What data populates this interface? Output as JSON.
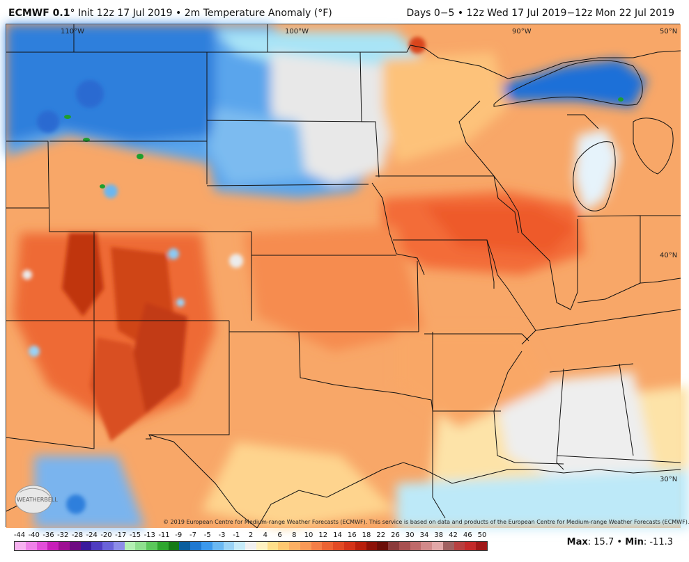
{
  "header": {
    "model": "ECMWF 0.1",
    "init_prefix": "° Init 12z 17 Jul 2019 • 2m Temperature Anomaly (°F)",
    "valid": "Days 0−5 • 12z Wed 17 Jul 2019−12z Mon 22 Jul 2019"
  },
  "map": {
    "lon_labels": [
      "110°W",
      "100°W",
      "90°W"
    ],
    "lat_labels": [
      "50°N",
      "40°N",
      "30°N"
    ]
  },
  "copyright": "© 2019 European Centre for Medium-range Weather Forecasts (ECMWF). This service is based on data and products of the European Centre for Medium-range Weather Forecasts (ECMWF).",
  "logo_text": "WEATHERBELL",
  "legend": {
    "ticks": [
      "-44",
      "-40",
      "-36",
      "-32",
      "-28",
      "-24",
      "-20",
      "-17",
      "-15",
      "-13",
      "-11",
      "-9",
      "-7",
      "-5",
      "-3",
      "-1",
      "2",
      "4",
      "6",
      "8",
      "10",
      "12",
      "14",
      "16",
      "18",
      "22",
      "26",
      "30",
      "34",
      "38",
      "42",
      "46",
      "50"
    ],
    "colors": [
      "#f7b2f0",
      "#ef82e8",
      "#e34fd9",
      "#c81fb9",
      "#9e0f93",
      "#6e0b82",
      "#3a1a9c",
      "#4f3cc0",
      "#6a63d8",
      "#8d8de8",
      "#b3f0b3",
      "#8fe08f",
      "#5cc85c",
      "#2ea62e",
      "#157a15",
      "#0b5e9e",
      "#1f78d1",
      "#3b98ec",
      "#6ab8f2",
      "#9ad3f6",
      "#c6ebf9",
      "#f0f0f0",
      "#fff2c2",
      "#ffdf8a",
      "#ffc870",
      "#fdb064",
      "#f99957",
      "#f47e47",
      "#ec6333",
      "#e24a24",
      "#d43318",
      "#b81f0c",
      "#8d1208",
      "#6b0e08",
      "#8b3a3a",
      "#a85050",
      "#bf6a6a",
      "#d28a8a",
      "#e2a8a8",
      "#a06060",
      "#b84040",
      "#c42a2a",
      "#a01818"
    ]
  },
  "stats": {
    "max_label": "Max",
    "max_value": "15.7",
    "separator": "•",
    "min_label": "Min",
    "min_value": "-11.3"
  }
}
